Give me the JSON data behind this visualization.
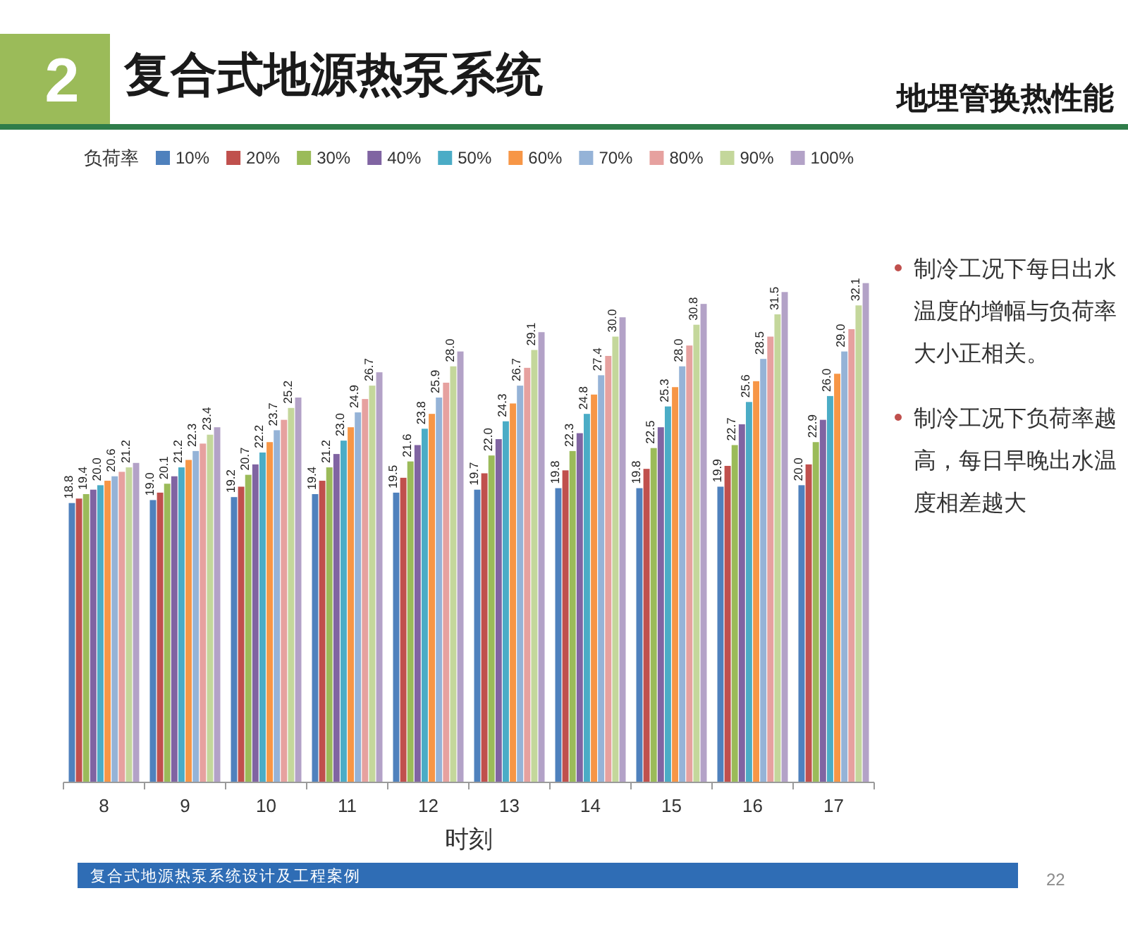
{
  "chart_data": {
    "type": "bar",
    "title": "复合式地源热泵系统",
    "subtitle": "地埋管换热性能",
    "xlabel": "时刻",
    "legend_title": "负荷率",
    "legend": "top",
    "categories": [
      "8",
      "9",
      "10",
      "11",
      "12",
      "13",
      "14",
      "15",
      "16",
      "17"
    ],
    "series": [
      {
        "name": "10%",
        "color": "#4f81bd",
        "values": [
          18.8,
          19.0,
          19.2,
          19.4,
          19.5,
          19.7,
          19.8,
          19.8,
          19.9,
          20.0
        ],
        "value_labels": [
          "18.8",
          "19.0",
          "19.2",
          "19.4",
          "19.5",
          "19.7",
          "19.8",
          "19.8",
          "19.9",
          "20.0"
        ]
      },
      {
        "name": "20%",
        "color": "#c0504d",
        "values": [
          19.1,
          19.5,
          19.9,
          20.3,
          20.5,
          20.8,
          21.0,
          21.1,
          21.3,
          21.4
        ]
      },
      {
        "name": "30%",
        "color": "#9bbb59",
        "values": [
          19.4,
          20.1,
          20.7,
          21.2,
          21.6,
          22.0,
          22.3,
          22.5,
          22.7,
          22.9
        ],
        "value_labels": [
          "19.4",
          "20.1",
          "20.7",
          "21.2",
          "21.6",
          "22.0",
          "22.3",
          "22.5",
          "22.7",
          "22.9"
        ]
      },
      {
        "name": "40%",
        "color": "#8064a2",
        "values": [
          19.7,
          20.6,
          21.4,
          22.1,
          22.7,
          23.1,
          23.5,
          23.9,
          24.1,
          24.4
        ]
      },
      {
        "name": "50%",
        "color": "#4bacc6",
        "values": [
          20.0,
          21.2,
          22.2,
          23.0,
          23.8,
          24.3,
          24.8,
          25.3,
          25.6,
          26.0
        ],
        "value_labels": [
          "20.0",
          "21.2",
          "22.2",
          "23.0",
          "23.8",
          "24.3",
          "24.8",
          "25.3",
          "25.6",
          "26.0"
        ]
      },
      {
        "name": "60%",
        "color": "#f79646",
        "values": [
          20.3,
          21.7,
          22.9,
          23.9,
          24.8,
          25.5,
          26.1,
          26.6,
          27.0,
          27.5
        ]
      },
      {
        "name": "70%",
        "color": "#95b3d7",
        "values": [
          20.6,
          22.3,
          23.7,
          24.9,
          25.9,
          26.7,
          27.4,
          28.0,
          28.5,
          29.0
        ],
        "value_labels": [
          "20.6",
          "22.3",
          "23.7",
          "24.9",
          "25.9",
          "26.7",
          "27.4",
          "28.0",
          "28.5",
          "29.0"
        ]
      },
      {
        "name": "80%",
        "color": "#e6a19f",
        "values": [
          20.9,
          22.8,
          24.4,
          25.8,
          26.9,
          27.9,
          28.7,
          29.4,
          30.0,
          30.5
        ]
      },
      {
        "name": "90%",
        "color": "#c4d79b",
        "values": [
          21.2,
          23.4,
          25.2,
          26.7,
          28.0,
          29.1,
          30.0,
          30.8,
          31.5,
          32.1
        ],
        "value_labels": [
          "21.2",
          "23.4",
          "25.2",
          "26.7",
          "28.0",
          "29.1",
          "30.0",
          "30.8",
          "31.5",
          "32.1"
        ]
      },
      {
        "name": "100%",
        "color": "#b3a2c7",
        "values": [
          21.5,
          23.9,
          25.9,
          27.6,
          29.0,
          30.3,
          31.3,
          32.2,
          33.0,
          33.6
        ]
      }
    ],
    "annotations": [
      "2",
      "制冷工况下每日出水温度的增幅与负荷率大小正相关。",
      "制冷工况下负荷率越高，每日早晚出水温度相差越大",
      "复合式地源热泵系统设计及工程案例",
      "22"
    ]
  }
}
